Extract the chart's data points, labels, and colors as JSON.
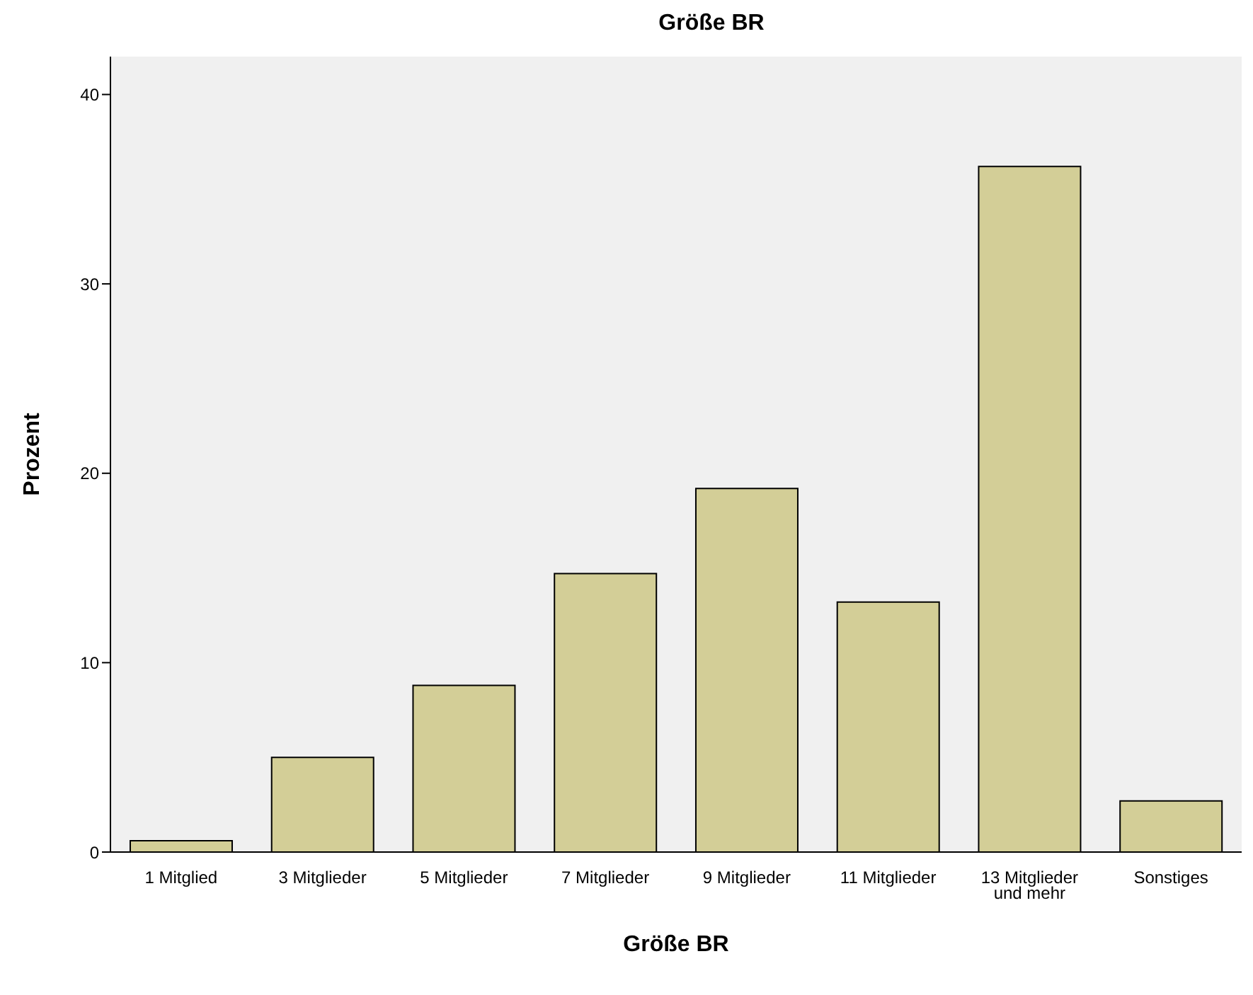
{
  "chart_data": {
    "type": "bar",
    "title": "Größe BR",
    "xlabel": "Größe BR",
    "ylabel": "Prozent",
    "categories": [
      "1 Mitglied",
      "3 Mitglieder",
      "5 Mitglieder",
      "7 Mitglieder",
      "9 Mitglieder",
      "11 Mitglieder",
      "13 Mitglieder und mehr",
      "Sonstiges"
    ],
    "values": [
      0.6,
      5.0,
      8.8,
      14.7,
      19.2,
      13.2,
      36.2,
      2.7
    ],
    "color": "#d3ce97",
    "ylim": [
      0,
      42
    ],
    "yticks": [
      0,
      10,
      20,
      30,
      40
    ],
    "grid": false,
    "legend": false
  }
}
